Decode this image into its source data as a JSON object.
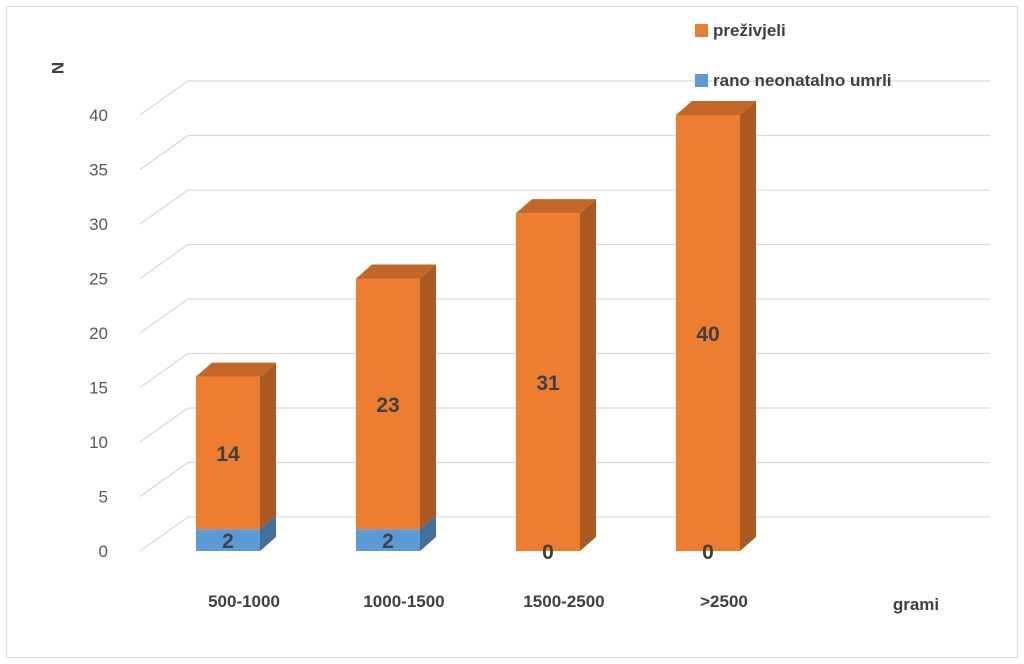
{
  "chart_data": {
    "type": "bar",
    "stacked": true,
    "three_d": true,
    "categories": [
      "500-1000",
      "1000-1500",
      "1500-2500",
      ">2500"
    ],
    "series": [
      {
        "name": "rano neonatalno umrli",
        "values": [
          2,
          2,
          0,
          0
        ],
        "color": "#5b9bd5"
      },
      {
        "name": "preživjeli",
        "values": [
          14,
          23,
          31,
          40
        ],
        "color": "#ed7d31"
      }
    ],
    "ylabel": "N",
    "xlabel": "grami",
    "ylim": [
      0,
      40
    ],
    "yticks": [
      0,
      5,
      10,
      15,
      20,
      25,
      30,
      35,
      40
    ],
    "grid": true,
    "legend_position": "top-right",
    "legend_order": [
      "preživjeli",
      "rano neonatalno umrli"
    ]
  }
}
